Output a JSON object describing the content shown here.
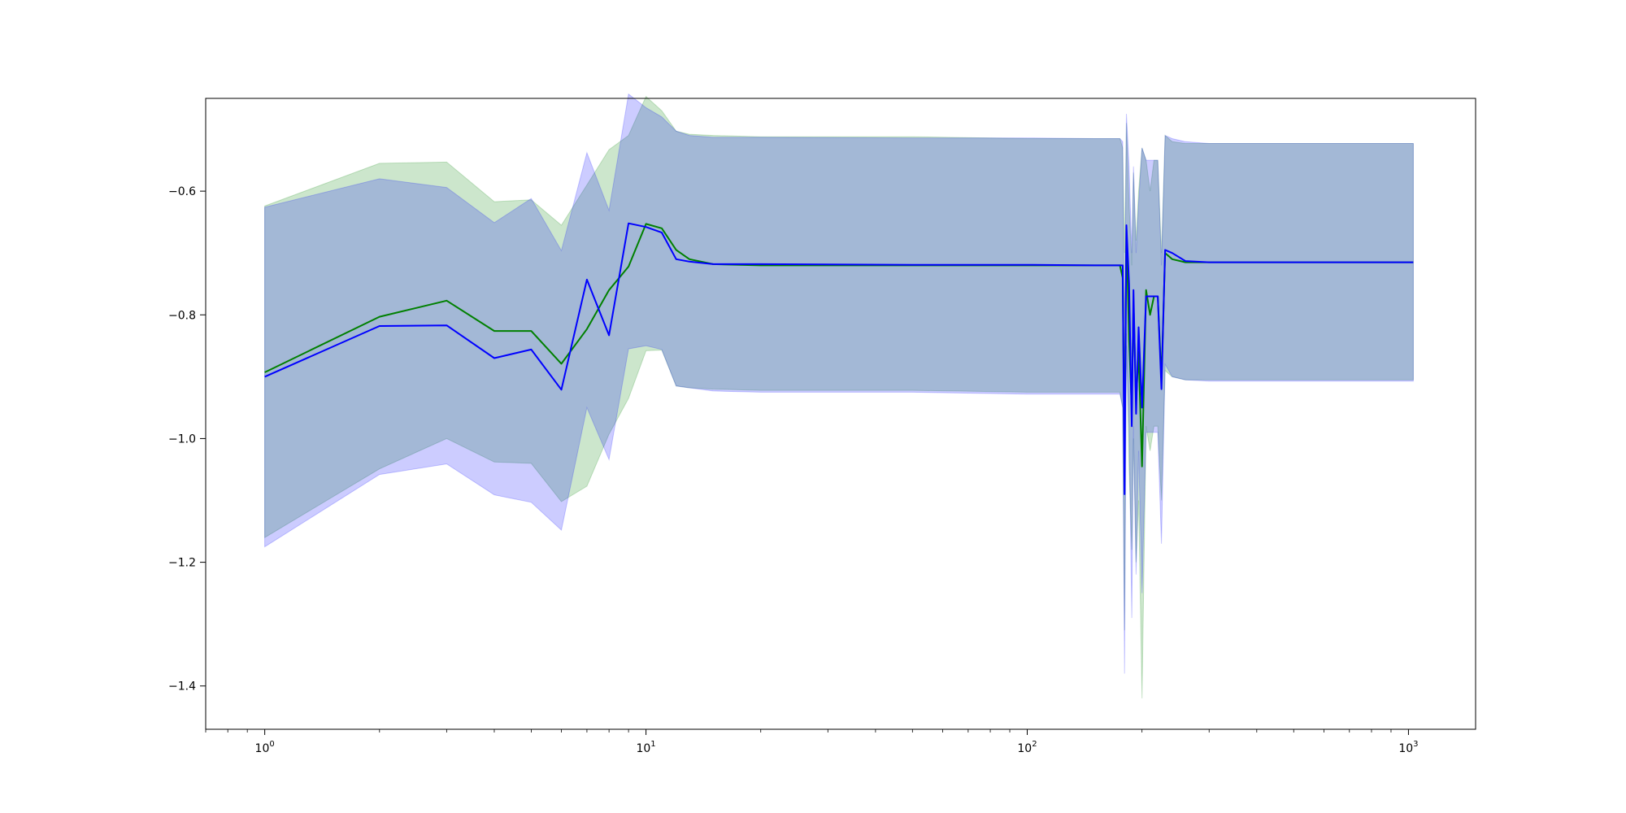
{
  "chart_data": {
    "type": "line",
    "title": "",
    "xlabel": "",
    "ylabel": "",
    "xscale": "log",
    "xlim": [
      0.7,
      1500
    ],
    "ylim": [
      -1.47,
      -0.45
    ],
    "grid": false,
    "legend": "none",
    "x_ticks": [
      {
        "value": 1,
        "base": "10",
        "exp": "0"
      },
      {
        "value": 10,
        "base": "10",
        "exp": "1"
      },
      {
        "value": 100,
        "base": "10",
        "exp": "2"
      },
      {
        "value": 1000,
        "base": "10",
        "exp": "3"
      }
    ],
    "y_ticks": [
      {
        "value": -1.4,
        "label": "−1.4"
      },
      {
        "value": -1.2,
        "label": "−1.2"
      },
      {
        "value": -1.0,
        "label": "−1.0"
      },
      {
        "value": -0.8,
        "label": "−0.8"
      },
      {
        "value": -0.6,
        "label": "−0.6"
      }
    ],
    "series": [
      {
        "color": "#008000",
        "band_color": "#008000",
        "band_opacity": 0.2,
        "x": [
          1,
          2,
          3,
          4,
          5,
          6,
          7,
          8,
          9,
          10,
          11,
          12,
          13,
          15,
          20,
          50,
          100,
          150,
          175,
          178,
          180,
          182,
          185,
          188,
          190,
          193,
          196,
          200,
          205,
          210,
          215,
          220,
          225,
          230,
          240,
          260,
          300,
          500,
          1030
        ],
        "y": [
          -0.893,
          -0.803,
          -0.777,
          -0.826,
          -0.826,
          -0.879,
          -0.823,
          -0.76,
          -0.722,
          -0.653,
          -0.66,
          -0.695,
          -0.71,
          -0.718,
          -0.72,
          -0.72,
          -0.72,
          -0.72,
          -0.72,
          -0.74,
          -1.02,
          -0.66,
          -0.84,
          -0.95,
          -0.78,
          -0.94,
          -0.86,
          -1.045,
          -0.76,
          -0.8,
          -0.77,
          -0.77,
          -0.905,
          -0.7,
          -0.71,
          -0.715,
          -0.715,
          -0.715,
          -0.715
        ],
        "upper": [
          -0.624,
          -0.555,
          -0.553,
          -0.617,
          -0.614,
          -0.655,
          -0.59,
          -0.533,
          -0.51,
          -0.447,
          -0.47,
          -0.503,
          -0.508,
          -0.51,
          -0.512,
          -0.512,
          -0.515,
          -0.515,
          -0.515,
          -0.53,
          -0.7,
          -0.49,
          -0.62,
          -0.72,
          -0.57,
          -0.68,
          -0.6,
          -0.53,
          -0.55,
          -0.6,
          -0.55,
          -0.55,
          -0.7,
          -0.51,
          -0.52,
          -0.523,
          -0.523,
          -0.523,
          -0.523
        ],
        "lower": [
          -1.16,
          -1.049,
          -1.0,
          -1.038,
          -1.04,
          -1.102,
          -1.077,
          -0.993,
          -0.935,
          -0.858,
          -0.857,
          -0.915,
          -0.918,
          -0.92,
          -0.922,
          -0.922,
          -0.925,
          -0.925,
          -0.925,
          -0.95,
          -1.31,
          -0.83,
          -1.05,
          -1.18,
          -1.0,
          -1.2,
          -1.1,
          -1.42,
          -0.98,
          -1.02,
          -0.98,
          -0.98,
          -1.1,
          -0.89,
          -0.9,
          -0.905,
          -0.905,
          -0.905,
          -0.905
        ]
      },
      {
        "color": "#0000ff",
        "band_color": "#0000ff",
        "band_opacity": 0.2,
        "x": [
          1,
          2,
          3,
          4,
          5,
          6,
          7,
          8,
          9,
          10,
          11,
          12,
          13,
          15,
          20,
          50,
          100,
          150,
          175,
          178,
          180,
          182,
          185,
          188,
          190,
          193,
          196,
          200,
          205,
          210,
          215,
          220,
          225,
          230,
          240,
          260,
          300,
          500,
          1030
        ],
        "y": [
          -0.9,
          -0.818,
          -0.817,
          -0.87,
          -0.856,
          -0.921,
          -0.743,
          -0.833,
          -0.652,
          -0.658,
          -0.667,
          -0.71,
          -0.714,
          -0.718,
          -0.718,
          -0.719,
          -0.719,
          -0.72,
          -0.72,
          -0.72,
          -1.09,
          -0.655,
          -0.75,
          -0.98,
          -0.76,
          -0.96,
          -0.82,
          -0.95,
          -0.77,
          -0.77,
          -0.77,
          -0.77,
          -0.92,
          -0.695,
          -0.7,
          -0.713,
          -0.715,
          -0.715,
          -0.715
        ],
        "upper": [
          -0.626,
          -0.58,
          -0.594,
          -0.651,
          -0.612,
          -0.696,
          -0.538,
          -0.631,
          -0.443,
          -0.465,
          -0.48,
          -0.503,
          -0.51,
          -0.513,
          -0.513,
          -0.514,
          -0.514,
          -0.515,
          -0.515,
          -0.52,
          -0.86,
          -0.475,
          -0.56,
          -0.7,
          -0.56,
          -0.7,
          -0.62,
          -0.53,
          -0.55,
          -0.55,
          -0.55,
          -0.55,
          -0.72,
          -0.51,
          -0.515,
          -0.52,
          -0.523,
          -0.523,
          -0.523
        ],
        "lower": [
          -1.175,
          -1.058,
          -1.041,
          -1.091,
          -1.103,
          -1.148,
          -0.95,
          -1.034,
          -0.855,
          -0.85,
          -0.856,
          -0.915,
          -0.918,
          -0.923,
          -0.925,
          -0.925,
          -0.928,
          -0.928,
          -0.928,
          -0.95,
          -1.38,
          -0.85,
          -0.98,
          -1.29,
          -0.98,
          -1.22,
          -1.02,
          -1.25,
          -0.99,
          -0.99,
          -0.99,
          -0.99,
          -1.17,
          -0.88,
          -0.9,
          -0.905,
          -0.907,
          -0.907,
          -0.907
        ]
      }
    ]
  }
}
